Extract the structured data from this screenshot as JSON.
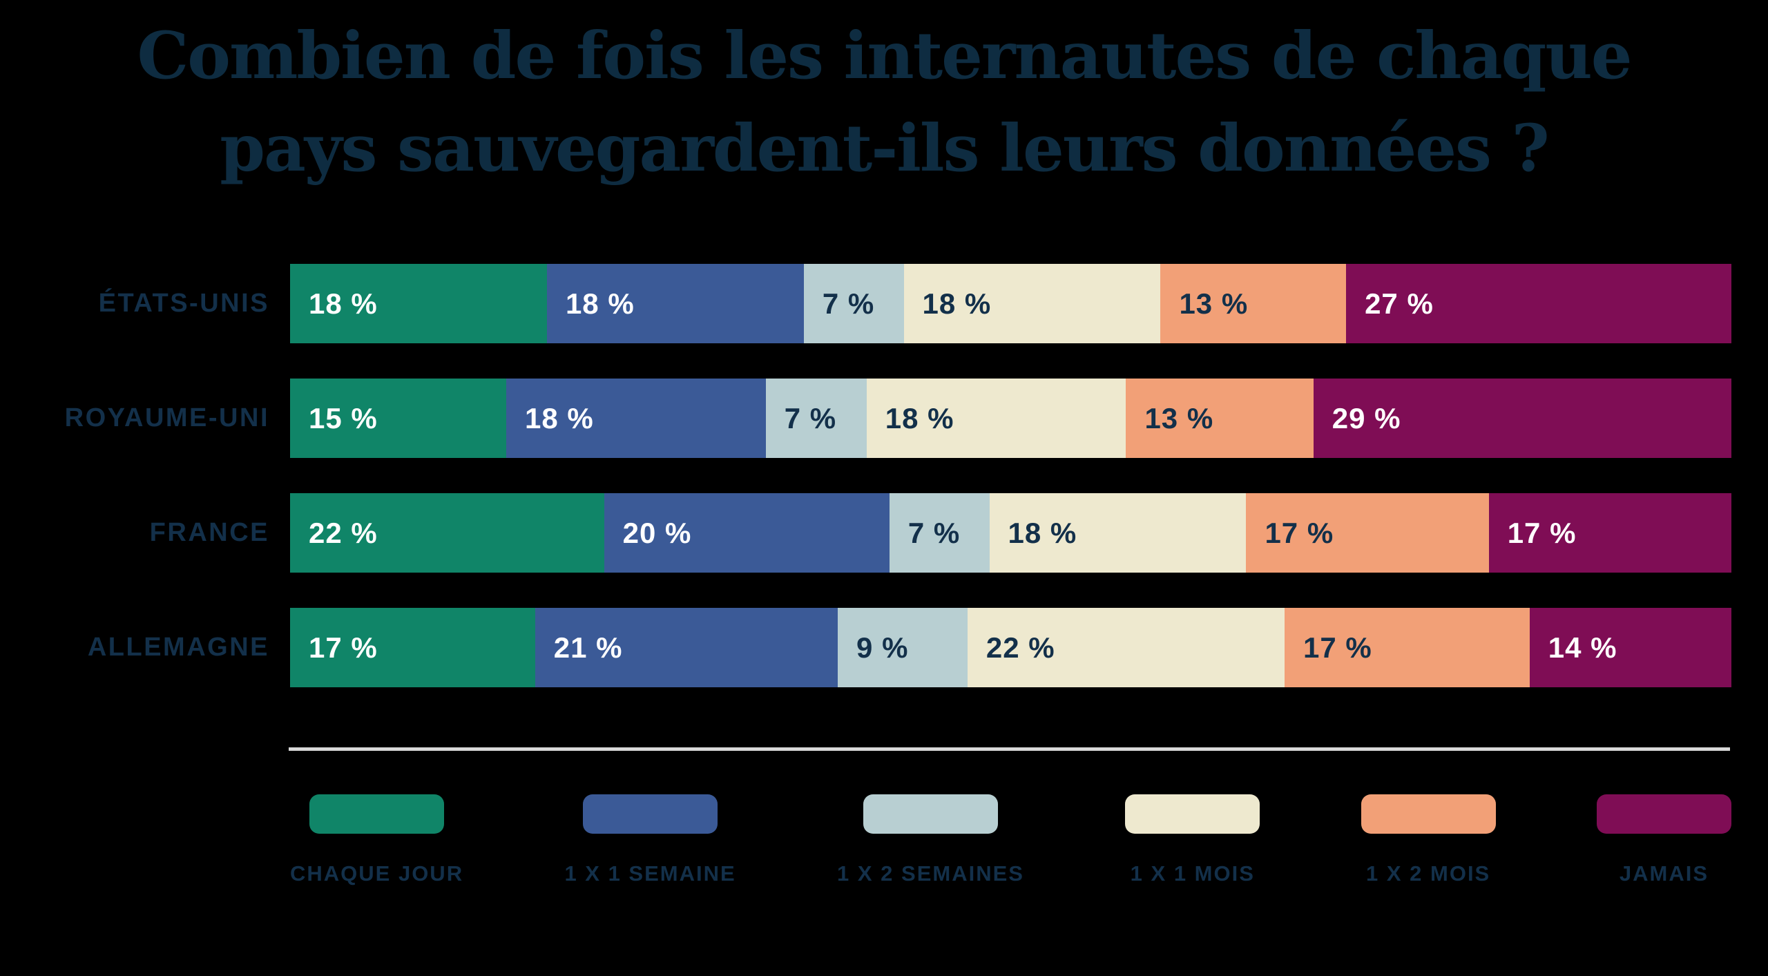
{
  "page": {
    "background_color": "#000000",
    "title_color": "#0e2c41",
    "label_color": "#13304a",
    "separator_color": "#d8d8d8",
    "title_lines": [
      "Combien de fois les internautes de chaque",
      "pays sauvegardent-ils leurs données ?"
    ]
  },
  "chart_data": {
    "type": "bar",
    "orientation": "horizontal-stacked",
    "title": "Combien de fois les internautes de chaque pays sauvegardent-ils leurs données ?",
    "categories": [
      "ÉTATS-UNIS",
      "ROYAUME-UNI",
      "FRANCE",
      "ALLEMAGNE"
    ],
    "series": [
      {
        "name": "CHAQUE JOUR",
        "color": "#108568",
        "text_color": "#ffffff",
        "values": [
          18,
          15,
          22,
          17
        ]
      },
      {
        "name": "1 X 1 SEMAINE",
        "color": "#3b5a97",
        "text_color": "#ffffff",
        "values": [
          18,
          18,
          20,
          21
        ]
      },
      {
        "name": "1 X 2 SEMAINES",
        "color": "#b8cfd2",
        "text_color": "#13304a",
        "values": [
          7,
          7,
          7,
          9
        ]
      },
      {
        "name": "1 X 1 MOIS",
        "color": "#eee9cf",
        "text_color": "#13304a",
        "values": [
          18,
          18,
          18,
          22
        ]
      },
      {
        "name": "1 X 2 MOIS",
        "color": "#f2a077",
        "text_color": "#13304a",
        "values": [
          13,
          13,
          17,
          17
        ]
      },
      {
        "name": "JAMAIS",
        "color": "#7f0d55",
        "text_color": "#ffffff",
        "values": [
          27,
          29,
          17,
          14
        ]
      }
    ],
    "value_suffix": " %",
    "xlim": [
      0,
      100
    ],
    "grid": false,
    "legend_position": "bottom"
  }
}
